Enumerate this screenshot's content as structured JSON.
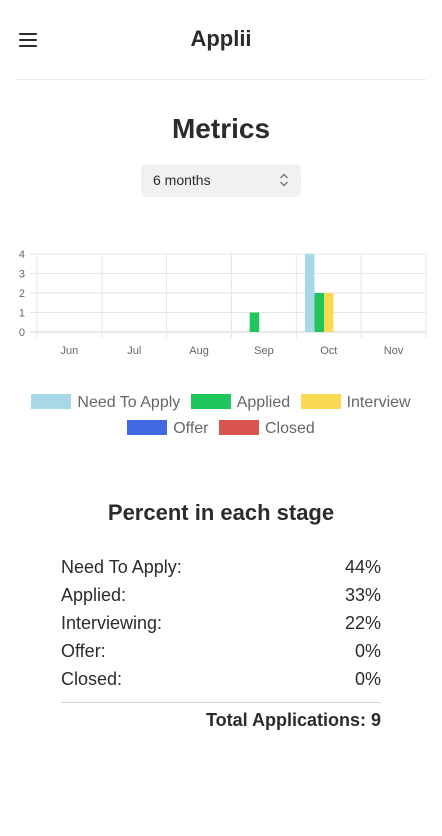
{
  "header": {
    "title": "Applii"
  },
  "page": {
    "title": "Metrics"
  },
  "range_select": {
    "value": "6 months"
  },
  "chart_data": {
    "type": "bar",
    "categories": [
      "Jun",
      "Jul",
      "Aug",
      "Sep",
      "Oct",
      "Nov"
    ],
    "series": [
      {
        "name": "Need To Apply",
        "color": "#a7d8e8",
        "values": [
          0,
          0,
          0,
          0,
          4,
          0
        ]
      },
      {
        "name": "Applied",
        "color": "#1fc65c",
        "values": [
          0,
          0,
          0,
          1,
          2,
          0
        ]
      },
      {
        "name": "Interview",
        "color": "#fcd955",
        "values": [
          0,
          0,
          0,
          0,
          2,
          0
        ]
      },
      {
        "name": "Offer",
        "color": "#4169e1",
        "values": [
          0,
          0,
          0,
          0,
          0,
          0
        ]
      },
      {
        "name": "Closed",
        "color": "#d9534f",
        "values": [
          0,
          0,
          0,
          0,
          0,
          0
        ]
      }
    ],
    "yticks": [
      "0",
      "1",
      "2",
      "3",
      "4"
    ],
    "ylim": [
      0,
      4
    ],
    "grid": true,
    "legend_position": "bottom"
  },
  "stages": {
    "title": "Percent in each stage",
    "rows": [
      {
        "label": "Need To Apply:",
        "value": "44%"
      },
      {
        "label": "Applied:",
        "value": "33%"
      },
      {
        "label": "Interviewing:",
        "value": "22%"
      },
      {
        "label": "Offer:",
        "value": "0%"
      },
      {
        "label": "Closed:",
        "value": "0%"
      }
    ],
    "total_label": "Total Applications: 9"
  },
  "icons": {
    "menu": "hamburger-menu-icon",
    "select": "chevron-up-down-icon"
  }
}
